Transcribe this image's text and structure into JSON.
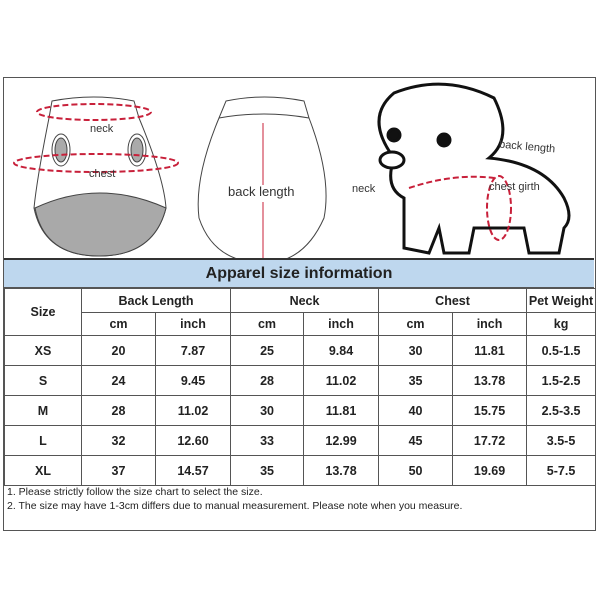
{
  "illustrations": {
    "front_labels": {
      "neck": "neck",
      "chest": "chest"
    },
    "back_label": "back length",
    "dog_labels": {
      "back_length": "back length",
      "neck": "neck",
      "chest_girth": "chest girth"
    },
    "accent_color": "#c8203a"
  },
  "title": "Apparel  size  information",
  "table": {
    "size_header": "Size",
    "groups": [
      "Back Length",
      "Neck",
      "Chest",
      "Pet Weight"
    ],
    "units": [
      "cm",
      "inch",
      "cm",
      "inch",
      "cm",
      "inch",
      "kg"
    ],
    "rows": [
      [
        "XS",
        "20",
        "7.87",
        "25",
        "9.84",
        "30",
        "11.81",
        "0.5-1.5"
      ],
      [
        "S",
        "24",
        "9.45",
        "28",
        "11.02",
        "35",
        "13.78",
        "1.5-2.5"
      ],
      [
        "M",
        "28",
        "11.02",
        "30",
        "11.81",
        "40",
        "15.75",
        "2.5-3.5"
      ],
      [
        "L",
        "32",
        "12.60",
        "33",
        "12.99",
        "45",
        "17.72",
        "3.5-5"
      ],
      [
        "XL",
        "37",
        "14.57",
        "35",
        "13.78",
        "50",
        "19.69",
        "5-7.5"
      ]
    ]
  },
  "notes": [
    "1. Please strictly follow the size chart  to select the size.",
    "2. The size may have 1-3cm differs due to manual measurement. Please note when you measure."
  ],
  "colors": {
    "title_bg": "#bed7ee",
    "border": "#555555"
  }
}
